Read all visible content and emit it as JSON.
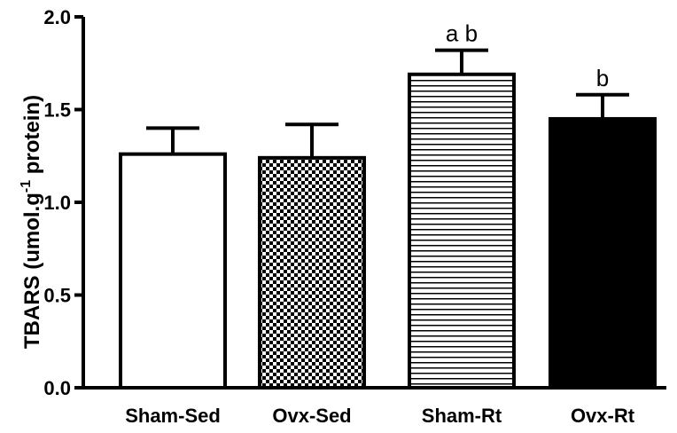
{
  "chart_data": {
    "type": "bar",
    "title": "",
    "xlabel": "",
    "ylabel": {
      "main": "TBARS (umol.g",
      "superscript": "-1",
      "suffix": " protein)"
    },
    "ylim": [
      0,
      2.0
    ],
    "yticks": [
      "0.0",
      "0.5",
      "1.0",
      "1.5",
      "2.0"
    ],
    "ytick_values": [
      0,
      0.5,
      1.0,
      1.5,
      2.0
    ],
    "grid": false,
    "categories": [
      "Sham-Sed",
      "Ovx-Sed",
      "Sham-Rt",
      "Ovx-Rt"
    ],
    "values": [
      1.26,
      1.24,
      1.69,
      1.45
    ],
    "errors": [
      0.14,
      0.18,
      0.13,
      0.13
    ],
    "fills": [
      "white",
      "checkerboard",
      "horizontal-lines",
      "black"
    ],
    "annotations": [
      "",
      "",
      "a b",
      "b"
    ]
  }
}
